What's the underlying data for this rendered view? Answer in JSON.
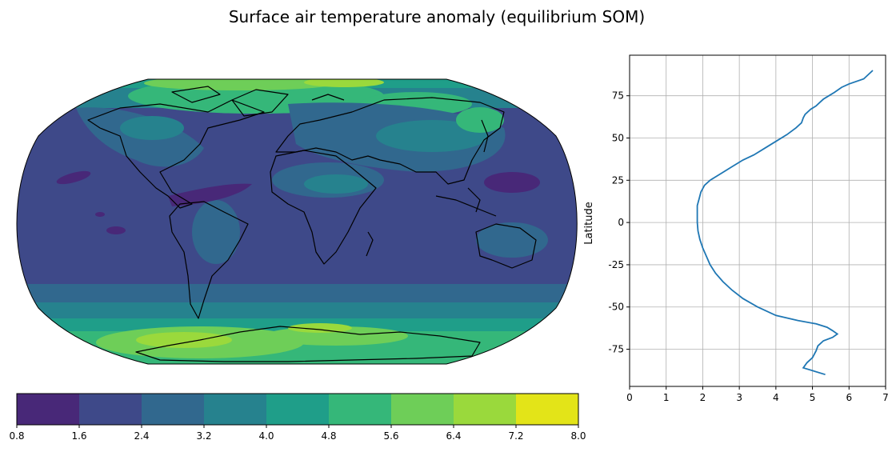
{
  "title": "Surface air temperature anomaly (equilibrium SOM)",
  "map": {
    "colorbar": {
      "ticks": [
        "0.8",
        "1.6",
        "2.4",
        "3.2",
        "4.0",
        "4.8",
        "5.6",
        "6.4",
        "7.2",
        "8.0"
      ],
      "colors": [
        "#482878",
        "#3e4989",
        "#31688e",
        "#26828e",
        "#1f9e89",
        "#35b779",
        "#6ece58",
        "#9ad93c",
        "#e3e418"
      ]
    }
  },
  "chart_data": {
    "type": "line",
    "ylabel": "Latitude",
    "xlabel": "",
    "xlim": [
      0,
      7
    ],
    "ylim": [
      -97,
      99
    ],
    "xticks": [
      0,
      1,
      2,
      3,
      4,
      5,
      6,
      7
    ],
    "yticks": [
      -75,
      -50,
      -25,
      0,
      25,
      50,
      75
    ],
    "grid": true,
    "line_color": "#1f77b4",
    "x": [
      6.65,
      6.4,
      6.0,
      5.8,
      5.6,
      5.45,
      5.3,
      5.2,
      5.1,
      4.95,
      4.8,
      4.75,
      4.7,
      4.55,
      4.3,
      4.0,
      3.7,
      3.4,
      3.1,
      2.8,
      2.5,
      2.2,
      2.05,
      1.95,
      1.9,
      1.85,
      1.85,
      1.85,
      1.87,
      1.92,
      2.0,
      2.1,
      2.2,
      2.35,
      2.55,
      2.8,
      3.1,
      3.5,
      4.0,
      4.6,
      5.1,
      5.4,
      5.55,
      5.68,
      5.55,
      5.3,
      5.15,
      5.1,
      5.0,
      4.85,
      4.75,
      5.35
    ],
    "y": [
      90,
      85,
      82,
      80,
      77,
      75,
      73,
      71,
      69,
      67,
      64,
      62,
      59,
      56,
      52,
      48,
      44,
      40,
      37,
      33,
      29,
      25,
      22,
      18,
      14,
      10,
      5,
      0,
      -5,
      -10,
      -15,
      -20,
      -25,
      -30,
      -35,
      -40,
      -45,
      -50,
      -55,
      -58,
      -60,
      -62,
      -64,
      -66,
      -68,
      -70,
      -73,
      -76,
      -80,
      -83,
      -86,
      -90
    ]
  }
}
